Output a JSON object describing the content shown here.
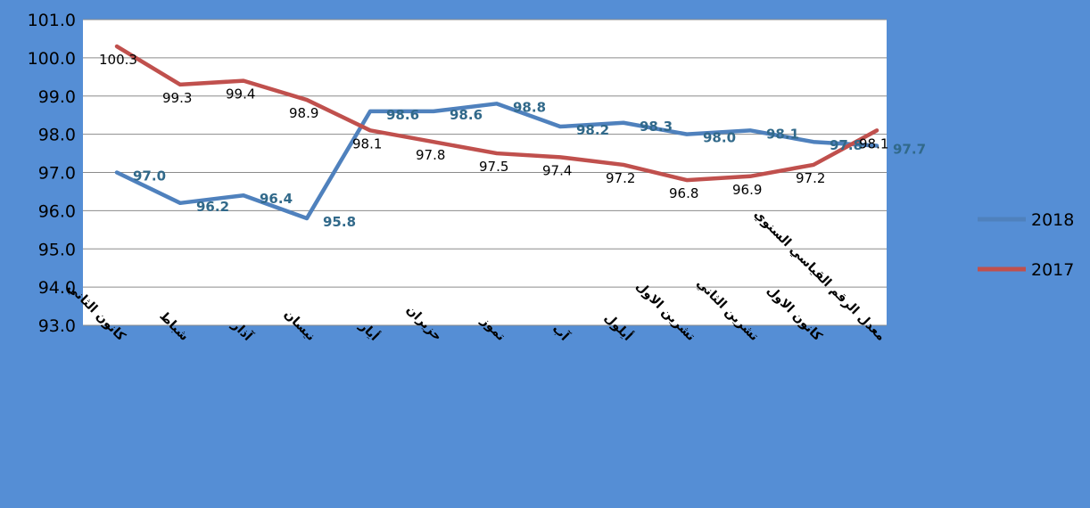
{
  "chart_data": {
    "type": "line",
    "title": "",
    "xlabel": "",
    "ylabel": "",
    "ylim": [
      93.0,
      101.0
    ],
    "yticks": [
      "93.0",
      "94.0",
      "95.0",
      "96.0",
      "97.0",
      "98.0",
      "99.0",
      "100.0",
      "101.0"
    ],
    "grid": true,
    "legend_position": "right",
    "categories": [
      "كانون الثاني",
      "شباط",
      "آذار",
      "نيسان",
      "أيار",
      "حزيران",
      "تموز",
      "آب",
      "أيلول",
      "تشرين الاول",
      "تشرين الثاني",
      "كانون الاول",
      "معدل الرقم القياسي السنوي"
    ],
    "series": [
      {
        "name": "2018",
        "color": "#4f81bd",
        "label_color": "#31698a",
        "values": [
          97.0,
          96.2,
          96.4,
          95.8,
          98.6,
          98.6,
          98.8,
          98.2,
          98.3,
          98.0,
          98.1,
          97.8,
          97.7
        ],
        "labels": [
          "97.0",
          "96.2",
          "96.4",
          "95.8",
          "98.6",
          "98.6",
          "98.8",
          "98.2",
          "98.3",
          "98.0",
          "98.1",
          "97.8",
          "97.7"
        ]
      },
      {
        "name": "2017",
        "color": "#c0504d",
        "label_color": "#000000",
        "values": [
          100.3,
          99.3,
          99.4,
          98.9,
          98.1,
          97.8,
          97.5,
          97.4,
          97.2,
          96.8,
          96.9,
          97.2,
          98.1
        ],
        "labels": [
          "100.3",
          "99.3",
          "99.4",
          "98.9",
          "98.1",
          "97.8",
          "97.5",
          "97.4",
          "97.2",
          "96.8",
          "96.9",
          "97.2",
          "98.1"
        ]
      }
    ]
  },
  "colors": {
    "chart_area_background": "#558ed5",
    "plot_area_background": "#ffffff",
    "gridline": "#8c8c8c"
  }
}
